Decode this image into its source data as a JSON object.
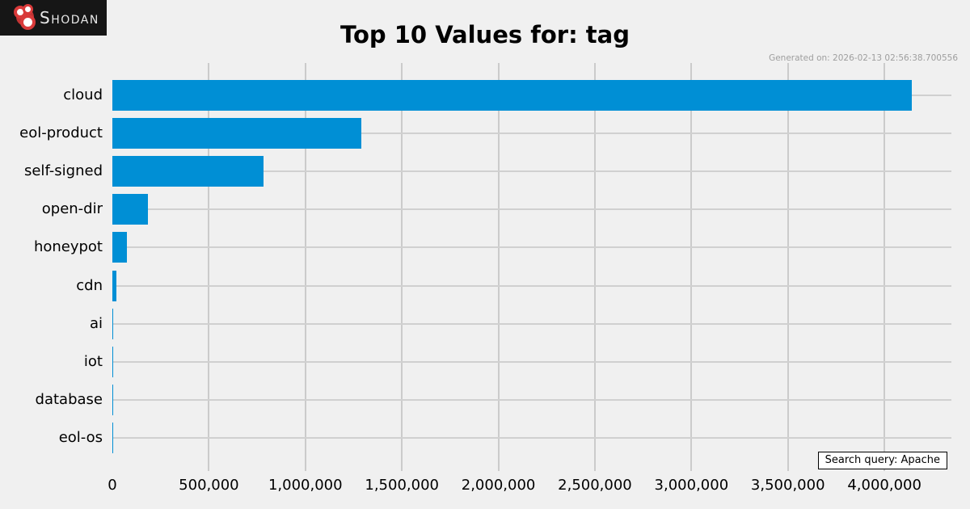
{
  "logo": {
    "brand": "Shodan",
    "background": "#161616",
    "red": "#d93a3a"
  },
  "header": {
    "title": "Top 10 Values for: tag",
    "generated_on": "Generated on: 2026-02-13 02:56:38.700556"
  },
  "footer": {
    "search_query": "Search query: Apache"
  },
  "chart_data": {
    "type": "bar",
    "orientation": "horizontal",
    "title": "Top 10 Values for: tag",
    "categories": [
      "cloud",
      "eol-product",
      "self-signed",
      "open-dir",
      "honeypot",
      "cdn",
      "ai",
      "iot",
      "database",
      "eol-os"
    ],
    "values": [
      4140000,
      1290000,
      785000,
      186000,
      76000,
      21000,
      3000,
      2500,
      2000,
      1500
    ],
    "xlabel": "",
    "ylabel": "",
    "xlim": [
      0,
      4347000
    ],
    "xticks": [
      0,
      500000,
      1000000,
      1500000,
      2000000,
      2500000,
      3000000,
      3500000,
      4000000
    ],
    "xtick_labels": [
      "0",
      "500,000",
      "1,000,000",
      "1,500,000",
      "2,000,000",
      "2,500,000",
      "3,000,000",
      "3,500,000",
      "4,000,000"
    ],
    "grid": true,
    "legend": false,
    "bar_color": "#008fd5",
    "background_color": "#f0f0f0",
    "grid_color": "#cbcbcb"
  }
}
